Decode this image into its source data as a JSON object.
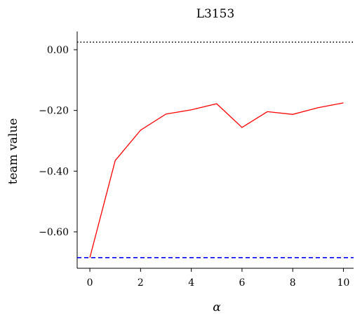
{
  "chart_data": {
    "type": "line",
    "title": "L3153",
    "xlabel": "α",
    "ylabel": "team value",
    "xlim": [
      -0.5,
      10.4
    ],
    "ylim": [
      -0.72,
      0.06
    ],
    "x_ticks": [
      0,
      2,
      4,
      6,
      8,
      10
    ],
    "x_tick_labels": [
      "0",
      "2",
      "4",
      "6",
      "8",
      "10"
    ],
    "y_ticks": [
      0.0,
      -0.2,
      -0.4,
      -0.6
    ],
    "y_tick_labels": [
      "0.00",
      "−0.20",
      "−0.40",
      "−0.60"
    ],
    "grid": false,
    "series": [
      {
        "color": "#ff0000",
        "style": "solid",
        "x": [
          0,
          1,
          2,
          3,
          4,
          5,
          6,
          7,
          8,
          9,
          10
        ],
        "values": [
          -0.685,
          -0.365,
          -0.265,
          -0.212,
          -0.198,
          -0.178,
          -0.256,
          -0.204,
          -0.213,
          -0.191,
          -0.175
        ]
      }
    ],
    "reference_lines": [
      {
        "y": 0.025,
        "color": "#000000",
        "style": "dotted"
      },
      {
        "y": -0.685,
        "color": "#0000ff",
        "style": "dashed"
      }
    ]
  }
}
